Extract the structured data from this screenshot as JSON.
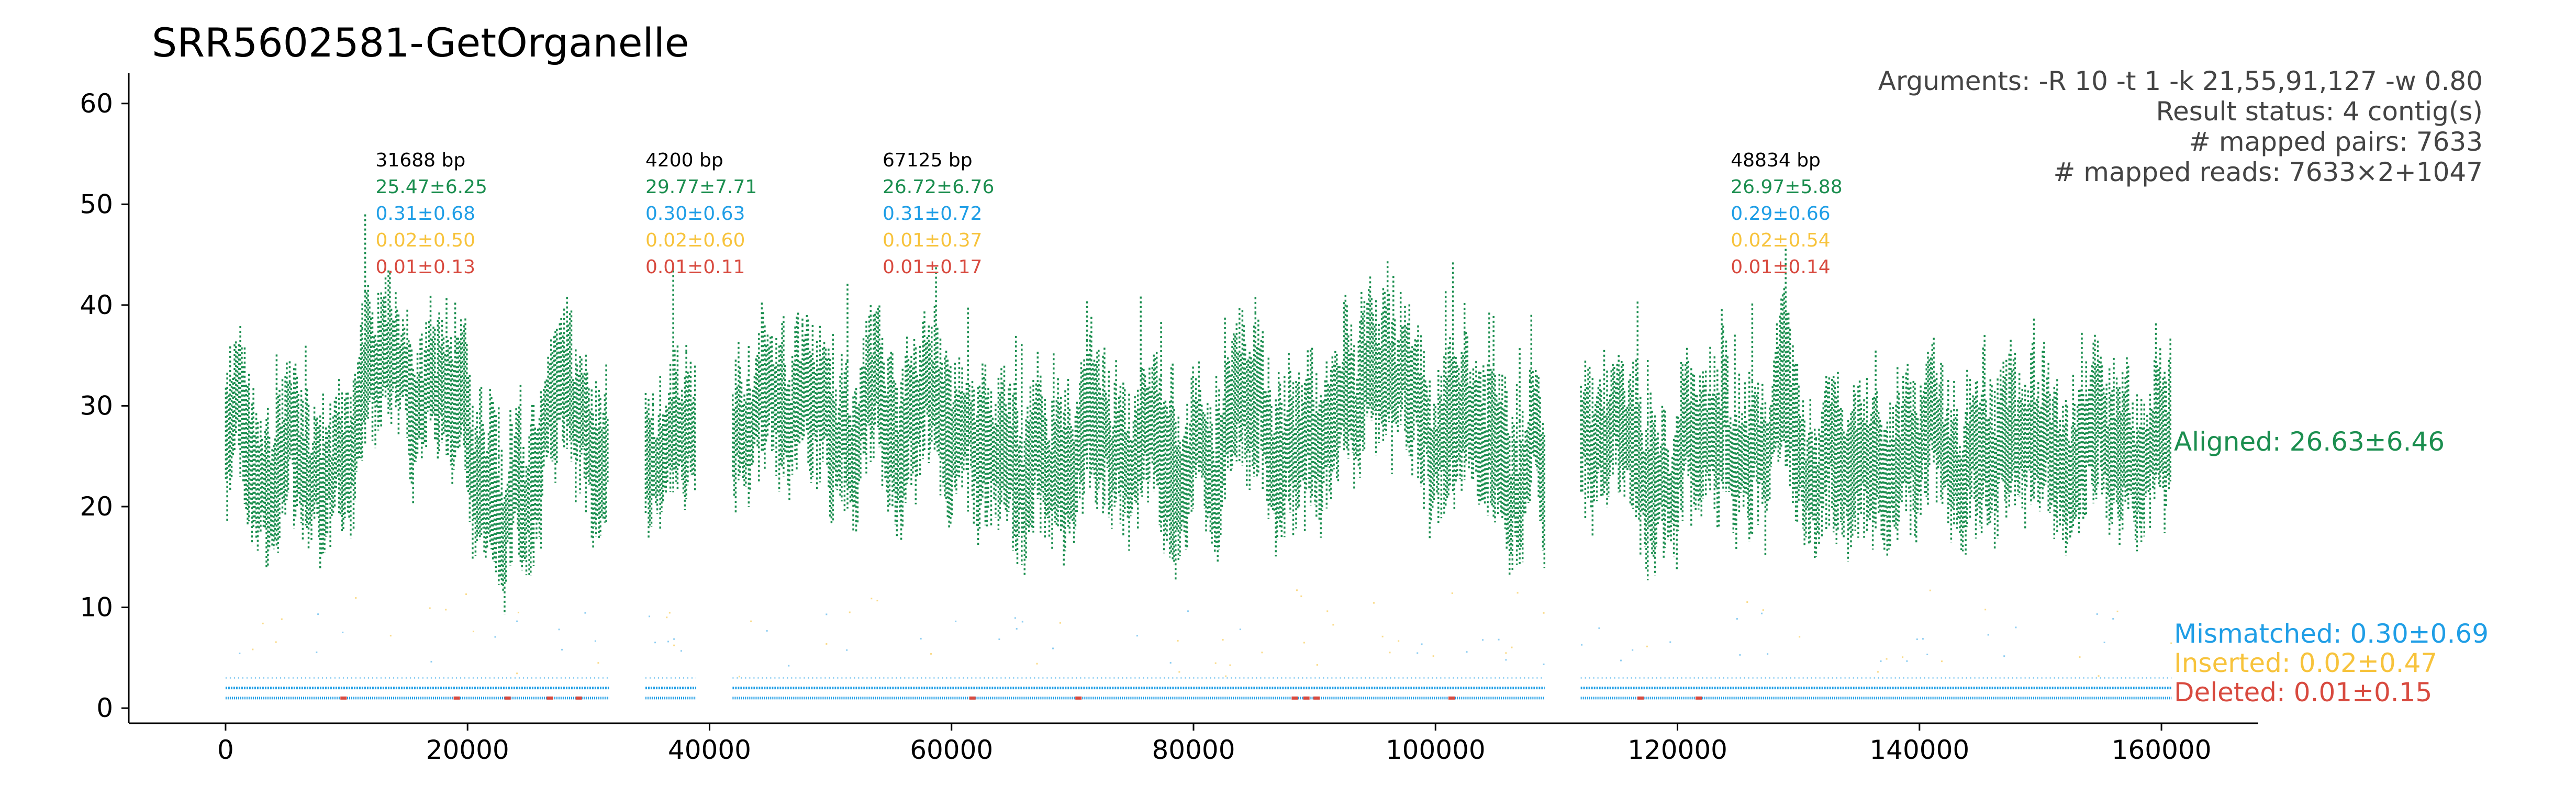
{
  "title": "SRR5602581-GetOrganelle",
  "info_lines": [
    "Arguments: -R 10 -t 1 -k 21,55,91,127 -w 0.80",
    "Result status: 4 contig(s)",
    "# mapped pairs: 7633",
    "# mapped reads: 7633×2+1047"
  ],
  "colors": {
    "aligned": "#1b8e4f",
    "mismatched": "#1f9ee6",
    "inserted": "#f7c33c",
    "deleted": "#d84a3f",
    "text": "#000000",
    "info": "#444444"
  },
  "chart_data": {
    "type": "scatter",
    "title": "SRR5602581-GetOrganelle",
    "xlabel": "",
    "ylabel": "",
    "xlim": [
      -8000,
      168000
    ],
    "ylim": [
      -1.5,
      63
    ],
    "xticks": [
      0,
      20000,
      40000,
      60000,
      80000,
      100000,
      120000,
      140000,
      160000
    ],
    "yticks": [
      0,
      10,
      20,
      30,
      40,
      50,
      60
    ],
    "grid": false,
    "contigs": [
      {
        "start": 0,
        "end": 31688,
        "length_label": "31688 bp",
        "aligned": "25.47±6.25",
        "mismatched": "0.31±0.68",
        "inserted": "0.02±0.50",
        "deleted": "0.01±0.13"
      },
      {
        "start": 34700,
        "end": 38900,
        "length_label": "4200 bp",
        "aligned": "29.77±7.71",
        "mismatched": "0.30±0.63",
        "inserted": "0.02±0.60",
        "deleted": "0.01±0.11"
      },
      {
        "start": 41900,
        "end": 109025,
        "length_label": "67125 bp",
        "aligned": "26.72±6.76",
        "mismatched": "0.31±0.72",
        "inserted": "0.01±0.37",
        "deleted": "0.01±0.17"
      },
      {
        "start": 112000,
        "end": 160834,
        "length_label": "48834 bp",
        "aligned": "26.97±5.88",
        "mismatched": "0.29±0.66",
        "inserted": "0.02±0.54",
        "deleted": "0.01±0.14"
      }
    ],
    "series": [
      {
        "name": "Aligned: 26.63±6.46",
        "key": "aligned",
        "mean": 26.63,
        "sd": 6.46
      },
      {
        "name": "Mismatched: 0.30±0.69",
        "key": "mismatched",
        "mean": 0.3,
        "sd": 0.69
      },
      {
        "name": "Inserted: 0.02±0.47",
        "key": "inserted",
        "mean": 0.02,
        "sd": 0.47
      },
      {
        "name": "Deleted: 0.01±0.15",
        "key": "deleted",
        "mean": 0.01,
        "sd": 0.15
      }
    ]
  }
}
